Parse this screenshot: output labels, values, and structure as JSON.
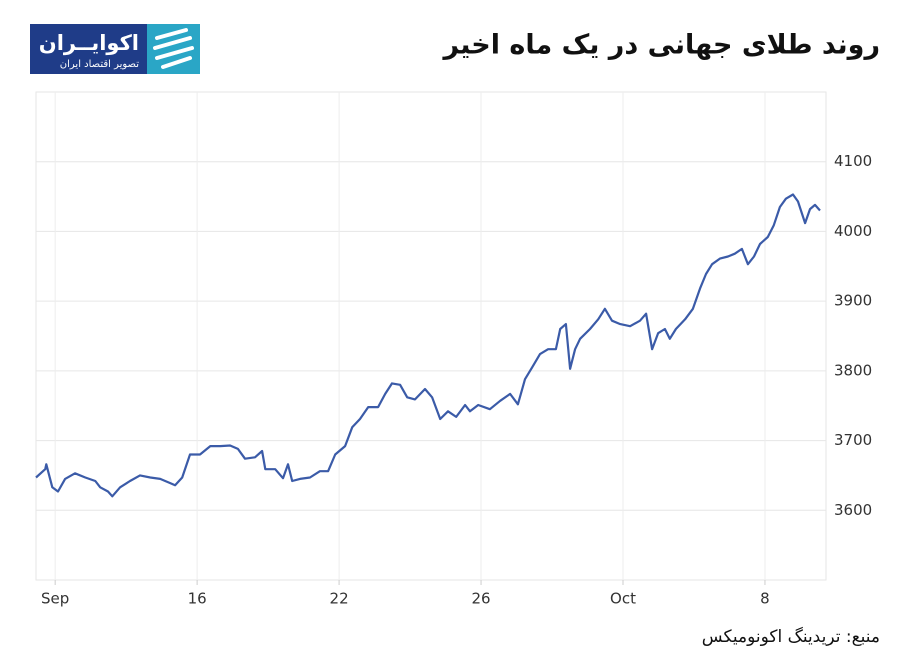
{
  "chart_data": {
    "type": "line",
    "title": "روند طلای جهانی در یک ماه اخیر",
    "logo_name": "اکوایــران",
    "logo_tagline": "تصویر اقتصاد ایران",
    "source": "منبع: تریدینگ اکونومیکس",
    "xlim": [
      -0.54,
      21.72
    ],
    "xticks": [
      {
        "value": 0,
        "label": "Sep"
      },
      4,
      8,
      12,
      {
        "value": 16,
        "label": "Oct"
      },
      20
    ],
    "xtick_labels_shown": [
      "Sep",
      "16",
      "22",
      "26",
      "Oct",
      "8"
    ],
    "ylim": [
      3500,
      4200
    ],
    "yticks": [
      3600,
      3700,
      3800,
      3900,
      4000,
      4100
    ],
    "grid": true,
    "series": [
      {
        "color": "#3b5ba8",
        "x": [
          -0.54,
          -0.28,
          -0.25,
          -0.08,
          0.08,
          0.28,
          0.56,
          0.85,
          1.13,
          1.27,
          1.49,
          1.61,
          1.83,
          2.11,
          2.39,
          2.68,
          2.96,
          3.24,
          3.38,
          3.58,
          3.8,
          4.08,
          4.37,
          4.65,
          4.93,
          5.15,
          5.35,
          5.63,
          5.83,
          5.92,
          6.2,
          6.42,
          6.56,
          6.68,
          6.9,
          7.18,
          7.46,
          7.69,
          7.89,
          8.17,
          8.37,
          8.59,
          8.82,
          9.1,
          9.3,
          9.49,
          9.72,
          9.92,
          10.14,
          10.42,
          10.62,
          10.85,
          11.07,
          11.3,
          11.55,
          11.69,
          11.92,
          12.25,
          12.54,
          12.82,
          13.04,
          13.24,
          13.44,
          13.66,
          13.89,
          14.11,
          14.23,
          14.39,
          14.51,
          14.65,
          14.79,
          15.07,
          15.3,
          15.49,
          15.69,
          15.92,
          16.2,
          16.48,
          16.65,
          16.82,
          16.99,
          17.18,
          17.32,
          17.49,
          17.75,
          17.97,
          18.17,
          18.34,
          18.51,
          18.73,
          18.96,
          19.15,
          19.35,
          19.52,
          19.69,
          19.86,
          20.08,
          20.25,
          20.42,
          20.59,
          20.79,
          20.93,
          21.13,
          21.27,
          21.41,
          21.55
        ],
        "values": [
          3647,
          3659,
          3666,
          3633,
          3627,
          3645,
          3653,
          3647,
          3642,
          3633,
          3627,
          3620,
          3633,
          3642,
          3650,
          3647,
          3645,
          3639,
          3636,
          3647,
          3680,
          3680,
          3692,
          3692,
          3693,
          3688,
          3674,
          3676,
          3685,
          3659,
          3659,
          3646,
          3666,
          3642,
          3645,
          3647,
          3656,
          3656,
          3680,
          3692,
          3719,
          3731,
          3748,
          3748,
          3767,
          3782,
          3780,
          3762,
          3759,
          3774,
          3762,
          3731,
          3742,
          3734,
          3751,
          3742,
          3751,
          3745,
          3757,
          3767,
          3752,
          3788,
          3805,
          3824,
          3831,
          3831,
          3860,
          3867,
          3803,
          3831,
          3846,
          3860,
          3874,
          3889,
          3872,
          3867,
          3864,
          3872,
          3882,
          3831,
          3854,
          3860,
          3846,
          3860,
          3874,
          3889,
          3918,
          3939,
          3953,
          3961,
          3964,
          3968,
          3975,
          3953,
          3964,
          3982,
          3992,
          4009,
          4035,
          4047,
          4053,
          4043,
          4012,
          4032,
          4038,
          4030
        ]
      }
    ]
  }
}
